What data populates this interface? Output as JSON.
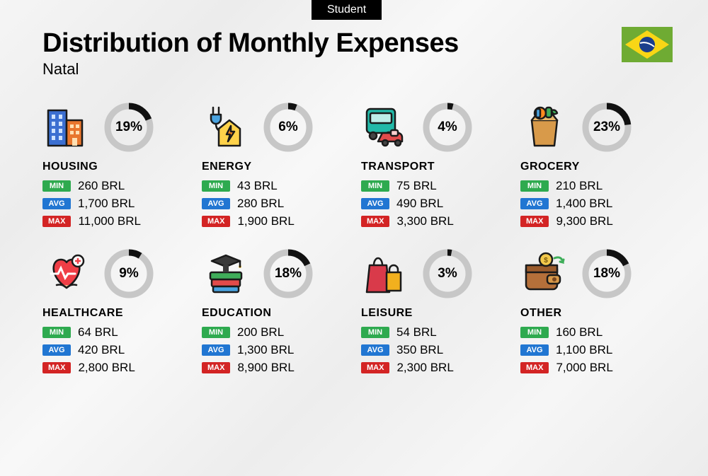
{
  "badge": "Student",
  "title": "Distribution of Monthly Expenses",
  "city": "Natal",
  "currency": "BRL",
  "colors": {
    "min_badge": "#2eaa4f",
    "avg_badge": "#2176d2",
    "max_badge": "#d32424",
    "donut_fg": "#111111",
    "donut_bg": "#c7c7c7",
    "flag_green": "#6fab33",
    "flag_yellow": "#f9d616",
    "flag_blue": "#1b3e8c"
  },
  "labels": {
    "min": "MIN",
    "avg": "AVG",
    "max": "MAX"
  },
  "donut": {
    "radius": 30,
    "stroke_width": 9
  },
  "categories": [
    {
      "key": "housing",
      "name": "HOUSING",
      "pct": 19,
      "min": "260",
      "avg": "1,700",
      "max": "11,000",
      "icon": "buildings"
    },
    {
      "key": "energy",
      "name": "ENERGY",
      "pct": 6,
      "min": "43",
      "avg": "280",
      "max": "1,900",
      "icon": "energy"
    },
    {
      "key": "transport",
      "name": "TRANSPORT",
      "pct": 4,
      "min": "75",
      "avg": "490",
      "max": "3,300",
      "icon": "transport"
    },
    {
      "key": "grocery",
      "name": "GROCERY",
      "pct": 23,
      "min": "210",
      "avg": "1,400",
      "max": "9,300",
      "icon": "grocery"
    },
    {
      "key": "healthcare",
      "name": "HEALTHCARE",
      "pct": 9,
      "min": "64",
      "avg": "420",
      "max": "2,800",
      "icon": "healthcare"
    },
    {
      "key": "education",
      "name": "EDUCATION",
      "pct": 18,
      "min": "200",
      "avg": "1,300",
      "max": "8,900",
      "icon": "education"
    },
    {
      "key": "leisure",
      "name": "LEISURE",
      "pct": 3,
      "min": "54",
      "avg": "350",
      "max": "2,300",
      "icon": "leisure"
    },
    {
      "key": "other",
      "name": "OTHER",
      "pct": 18,
      "min": "160",
      "avg": "1,100",
      "max": "7,000",
      "icon": "wallet"
    }
  ]
}
